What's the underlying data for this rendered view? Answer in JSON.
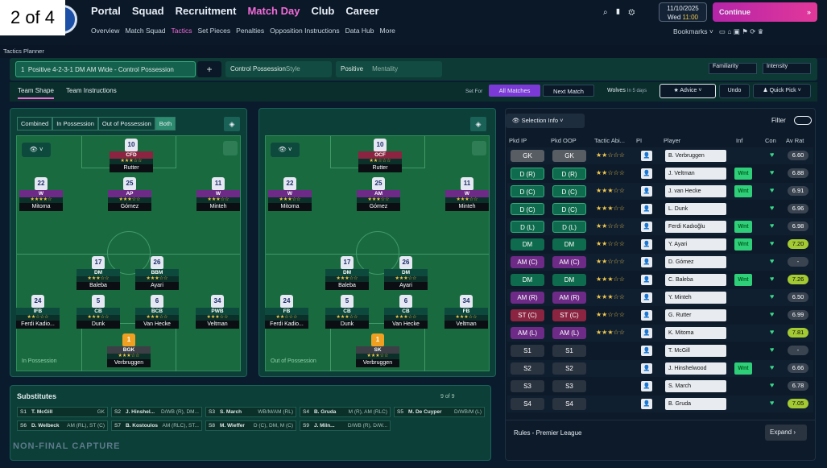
{
  "badge": "2 of 4",
  "nav": {
    "items": [
      "Portal",
      "Squad",
      "Recruitment",
      "Match Day",
      "Club",
      "Career"
    ],
    "active": "Match Day"
  },
  "subnav": {
    "items": [
      "Overview",
      "Match Squad",
      "Tactics",
      "Set Pieces",
      "Penalties",
      "Opposition Instructions",
      "Data Hub",
      "More"
    ],
    "active": "Tactics"
  },
  "date": {
    "day": "11/10/2025",
    "weekday": "Wed",
    "time": "11:00"
  },
  "continue_label": "Continue",
  "bookmarks_label": "Bookmarks",
  "tactics_planner": "Tactics Planner",
  "tactic": {
    "number": "1",
    "name": "Positive 4-2-3-1 DM AM Wide - Control Possession",
    "style_label": "Control Possession",
    "style_suffix": "Style",
    "mentality_value": "Positive",
    "mentality_label": "Mentality",
    "familiarity": "Familiarity",
    "intensity": "Intensity"
  },
  "tabs": {
    "team_shape": "Team Shape",
    "team_instructions": "Team Instructions",
    "set_for": "Set For",
    "all_matches": "All Matches",
    "next_match": "Next Match",
    "opponent": "Wolves",
    "opponent_days": "In 5 days",
    "advice": "Advice",
    "undo": "Undo",
    "quick_pick": "Quick Pick"
  },
  "phase_tabs": [
    "Combined",
    "In Possession",
    "Out of Possession",
    "Both"
  ],
  "pitch_labels": {
    "in": "In Possession",
    "out": "Out of Possession"
  },
  "pitch_in": [
    {
      "num": "10",
      "role": "CFD",
      "stars": "★★★☆☆",
      "name": "Rutter"
    },
    {
      "num": "22",
      "role": "W",
      "stars": "★★★★☆",
      "name": "Mitoma"
    },
    {
      "num": "25",
      "role": "AP",
      "stars": "★★★☆☆",
      "name": "Gómez"
    },
    {
      "num": "11",
      "role": "W",
      "stars": "★★★☆☆",
      "name": "Minteh"
    },
    {
      "num": "17",
      "role": "DM",
      "stars": "★★★☆☆",
      "name": "Baleba"
    },
    {
      "num": "26",
      "role": "BBM",
      "stars": "★★★☆☆",
      "name": "Ayari"
    },
    {
      "num": "24",
      "role": "IFB",
      "stars": "★★☆☆☆",
      "name": "Ferdi Kadio..."
    },
    {
      "num": "5",
      "role": "CB",
      "stars": "★★★☆☆",
      "name": "Dunk"
    },
    {
      "num": "6",
      "role": "BCB",
      "stars": "★★★☆☆",
      "name": "Van Hecke"
    },
    {
      "num": "34",
      "role": "PWB",
      "stars": "★★★☆☆",
      "name": "Veltman"
    },
    {
      "num": "1",
      "role": "BGK",
      "stars": "★★★☆☆",
      "name": "Verbruggen"
    }
  ],
  "pitch_out": [
    {
      "num": "10",
      "role": "OCF",
      "stars": "★★☆☆☆",
      "name": "Rutter"
    },
    {
      "num": "22",
      "role": "W",
      "stars": "★★★☆☆",
      "name": "Mitoma"
    },
    {
      "num": "25",
      "role": "AM",
      "stars": "★★★☆☆",
      "name": "Gómez"
    },
    {
      "num": "11",
      "role": "W",
      "stars": "★★★☆☆",
      "name": "Minteh"
    },
    {
      "num": "17",
      "role": "DM",
      "stars": "★★★☆☆",
      "name": "Baleba"
    },
    {
      "num": "26",
      "role": "DM",
      "stars": "★★★☆☆",
      "name": "Ayari"
    },
    {
      "num": "24",
      "role": "FB",
      "stars": "★★☆☆☆",
      "name": "Ferdi Kadio..."
    },
    {
      "num": "5",
      "role": "CB",
      "stars": "★★★☆☆",
      "name": "Dunk"
    },
    {
      "num": "6",
      "role": "CB",
      "stars": "★★★☆☆",
      "name": "Van Hecke"
    },
    {
      "num": "34",
      "role": "FB",
      "stars": "★★★☆☆",
      "name": "Veltman"
    },
    {
      "num": "1",
      "role": "SK",
      "stars": "★★★☆☆",
      "name": "Verbruggen"
    }
  ],
  "table": {
    "selection_info": "Selection Info",
    "filter": "Filter",
    "headers": [
      "Pkd IP",
      "Pkd OOP",
      "Tactic Abi...",
      "PI",
      "Player",
      "Inf",
      "Con",
      "Av Rat"
    ],
    "rows": [
      {
        "ip": "GK",
        "oop": "GK",
        "stars": "★★☆☆☆",
        "player": "B. Verbruggen",
        "inf": "",
        "rat": "6.60",
        "cls": "gk"
      },
      {
        "ip": "D (R)",
        "oop": "D (R)",
        "stars": "★★☆☆☆",
        "player": "J. Veltman",
        "inf": "Wnt",
        "rat": "6.88",
        "cls": "d"
      },
      {
        "ip": "D (C)",
        "oop": "D (C)",
        "stars": "★★★☆☆",
        "player": "J. van Hecke",
        "inf": "Wnt",
        "rat": "6.91",
        "cls": "d"
      },
      {
        "ip": "D (C)",
        "oop": "D (C)",
        "stars": "★★★☆☆",
        "player": "L. Dunk",
        "inf": "",
        "rat": "6.96",
        "cls": "d"
      },
      {
        "ip": "D (L)",
        "oop": "D (L)",
        "stars": "★★☆☆☆",
        "player": "Ferdi Kadıoğlu",
        "inf": "Wnt",
        "rat": "6.98",
        "cls": "d"
      },
      {
        "ip": "DM",
        "oop": "DM",
        "stars": "★★☆☆☆",
        "player": "Y. Ayari",
        "inf": "Wnt",
        "rat": "7.20",
        "cls": "m"
      },
      {
        "ip": "AM (C)",
        "oop": "AM (C)",
        "stars": "★★☆☆☆",
        "player": "D. Gómez",
        "inf": "",
        "rat": "-",
        "cls": "am"
      },
      {
        "ip": "DM",
        "oop": "DM",
        "stars": "★★★☆☆",
        "player": "C. Baleba",
        "inf": "Wnt",
        "rat": "7.26",
        "cls": "m"
      },
      {
        "ip": "AM (R)",
        "oop": "AM (R)",
        "stars": "★★★☆☆",
        "player": "Y. Minteh",
        "inf": "",
        "rat": "6.50",
        "cls": "am"
      },
      {
        "ip": "ST (C)",
        "oop": "ST (C)",
        "stars": "★★☆☆☆",
        "player": "G. Rutter",
        "inf": "",
        "rat": "6.99",
        "cls": "st"
      },
      {
        "ip": "AM (L)",
        "oop": "AM (L)",
        "stars": "★★★☆☆",
        "player": "K. Mitoma",
        "inf": "",
        "rat": "7.81",
        "cls": "am"
      },
      {
        "ip": "S1",
        "oop": "S1",
        "stars": "",
        "player": "T. McGill",
        "inf": "",
        "rat": "-",
        "cls": "s"
      },
      {
        "ip": "S2",
        "oop": "S2",
        "stars": "",
        "player": "J. Hinshelwood",
        "inf": "Wnt",
        "rat": "6.66",
        "cls": "s"
      },
      {
        "ip": "S3",
        "oop": "S3",
        "stars": "",
        "player": "S. March",
        "inf": "",
        "rat": "6.78",
        "cls": "s"
      },
      {
        "ip": "S4",
        "oop": "S4",
        "stars": "",
        "player": "B. Gruda",
        "inf": "",
        "rat": "7.05",
        "cls": "s"
      }
    ],
    "rules": "Rules - Premier League",
    "expand": "Expand"
  },
  "subs": {
    "title": "Substitutes",
    "count": "9 of 9",
    "items": [
      {
        "s": "S1",
        "name": "T. McGill",
        "pos": "GK"
      },
      {
        "s": "S2",
        "name": "J. Hinshel...",
        "pos": "D/WB (R), DM..."
      },
      {
        "s": "S3",
        "name": "S. March",
        "pos": "WB/M/AM (RL)"
      },
      {
        "s": "S4",
        "name": "B. Gruda",
        "pos": "M (R), AM (RLC)"
      },
      {
        "s": "S5",
        "name": "M. De Cuyper",
        "pos": "D/WB/M (L)"
      },
      {
        "s": "S6",
        "name": "D. Welbeck",
        "pos": "AM (RL), ST (C)"
      },
      {
        "s": "S7",
        "name": "B. Kostoulos",
        "pos": "AM (RLC), ST..."
      },
      {
        "s": "S8",
        "name": "M. Wieffer",
        "pos": "D (C), DM, M (C)"
      },
      {
        "s": "S9",
        "name": "J. Miln...",
        "pos": "D/WB (R), D/W..."
      }
    ]
  },
  "watermark": "NON-FINAL CAPTURE"
}
